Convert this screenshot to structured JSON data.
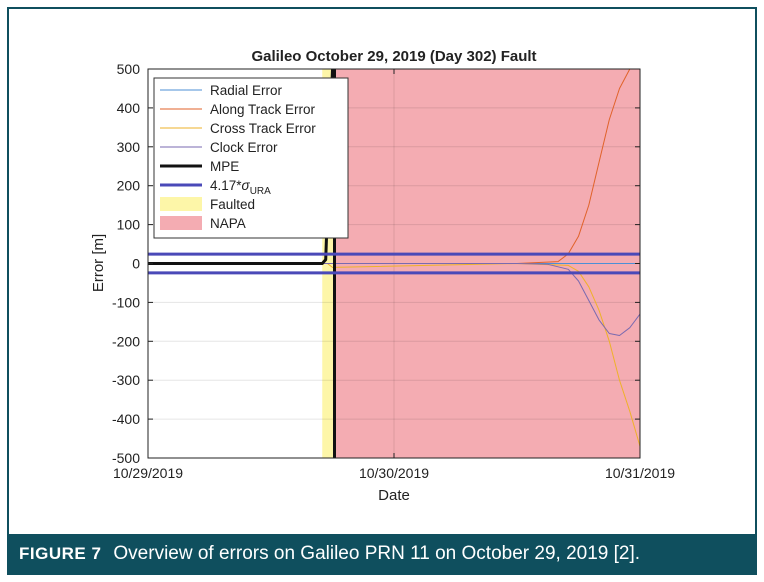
{
  "figure": {
    "label": "FIGURE 7",
    "caption": "Overview of errors on Galileo PRN 11 on October 29, 2019 [2]."
  },
  "chart_data": {
    "type": "line",
    "title": "Galileo October 29, 2019 (Day 302) Fault",
    "xlabel": "Date",
    "ylabel": "Error [m]",
    "ylim": [
      -500,
      500
    ],
    "yticks": [
      -500,
      -400,
      -300,
      -200,
      -100,
      0,
      100,
      200,
      300,
      400,
      500
    ],
    "xlim": [
      "2019-10-29 00:00",
      "2019-10-31 00:00"
    ],
    "xticks": [
      {
        "x": "2019-10-29 00:00",
        "label": "10/29/2019"
      },
      {
        "x": "2019-10-30 00:00",
        "label": "10/30/2019"
      },
      {
        "x": "2019-10-31 00:00",
        "label": "10/31/2019"
      }
    ],
    "grid": true,
    "legend_position": "top-left",
    "regions": [
      {
        "name": "Faulted",
        "color": "#fdf6a8",
        "x_start": "2019-10-29 17:00",
        "x_end": "2019-10-29 18:20"
      },
      {
        "name": "NAPA",
        "color": "#f4acb2",
        "x_start": "2019-10-29 18:20",
        "x_end": "2019-10-31 00:00"
      }
    ],
    "series": [
      {
        "name": "Radial Error",
        "color": "#4d8fd6",
        "width": 1,
        "points": [
          [
            "2019-10-29 00:00",
            0
          ],
          [
            "2019-10-29 17:30",
            0
          ],
          [
            "2019-10-29 18:00",
            0
          ],
          [
            "2019-10-30 09:00",
            0
          ],
          [
            "2019-10-30 12:00",
            0
          ],
          [
            "2019-10-30 18:00",
            0
          ],
          [
            "2019-10-31 00:00",
            0
          ]
        ]
      },
      {
        "name": "Along Track Error",
        "color": "#e0622a",
        "width": 1,
        "points": [
          [
            "2019-10-29 00:00",
            0
          ],
          [
            "2019-10-29 18:00",
            0
          ],
          [
            "2019-10-30 12:00",
            0
          ],
          [
            "2019-10-30 16:00",
            5
          ],
          [
            "2019-10-30 17:00",
            25
          ],
          [
            "2019-10-30 18:00",
            70
          ],
          [
            "2019-10-30 19:00",
            150
          ],
          [
            "2019-10-30 20:00",
            260
          ],
          [
            "2019-10-30 21:00",
            370
          ],
          [
            "2019-10-30 22:00",
            450
          ],
          [
            "2019-10-30 23:00",
            500
          ]
        ]
      },
      {
        "name": "Cross Track Error",
        "color": "#eeb12a",
        "width": 1,
        "points": [
          [
            "2019-10-29 00:00",
            0
          ],
          [
            "2019-10-29 17:30",
            0
          ],
          [
            "2019-10-29 18:00",
            -10
          ],
          [
            "2019-10-30 12:00",
            0
          ],
          [
            "2019-10-30 17:00",
            -5
          ],
          [
            "2019-10-30 18:00",
            -20
          ],
          [
            "2019-10-30 19:00",
            -60
          ],
          [
            "2019-10-30 20:00",
            -120
          ],
          [
            "2019-10-30 21:00",
            -200
          ],
          [
            "2019-10-30 22:00",
            -300
          ],
          [
            "2019-10-30 23:00",
            -380
          ],
          [
            "2019-10-31 00:00",
            -470
          ]
        ]
      },
      {
        "name": "Clock Error",
        "color": "#7a6ab0",
        "width": 1,
        "points": [
          [
            "2019-10-29 00:00",
            0
          ],
          [
            "2019-10-30 12:00",
            0
          ],
          [
            "2019-10-30 15:00",
            -2
          ],
          [
            "2019-10-30 17:00",
            -15
          ],
          [
            "2019-10-30 18:00",
            -45
          ],
          [
            "2019-10-30 19:00",
            -95
          ],
          [
            "2019-10-30 20:00",
            -145
          ],
          [
            "2019-10-30 21:00",
            -180
          ],
          [
            "2019-10-30 22:00",
            -185
          ],
          [
            "2019-10-30 23:00",
            -165
          ],
          [
            "2019-10-31 00:00",
            -130
          ]
        ]
      },
      {
        "name": "MPE",
        "color": "#111111",
        "width": 3,
        "points": [
          [
            "2019-10-29 00:00",
            0
          ],
          [
            "2019-10-29 17:00",
            0
          ],
          [
            "2019-10-29 17:20",
            10
          ],
          [
            "2019-10-29 18:00",
            500
          ]
        ]
      }
    ],
    "threshold": {
      "name": "4.17*σ_URA",
      "color": "#4a49b8",
      "width": 3,
      "values": [
        24,
        -24
      ]
    }
  }
}
